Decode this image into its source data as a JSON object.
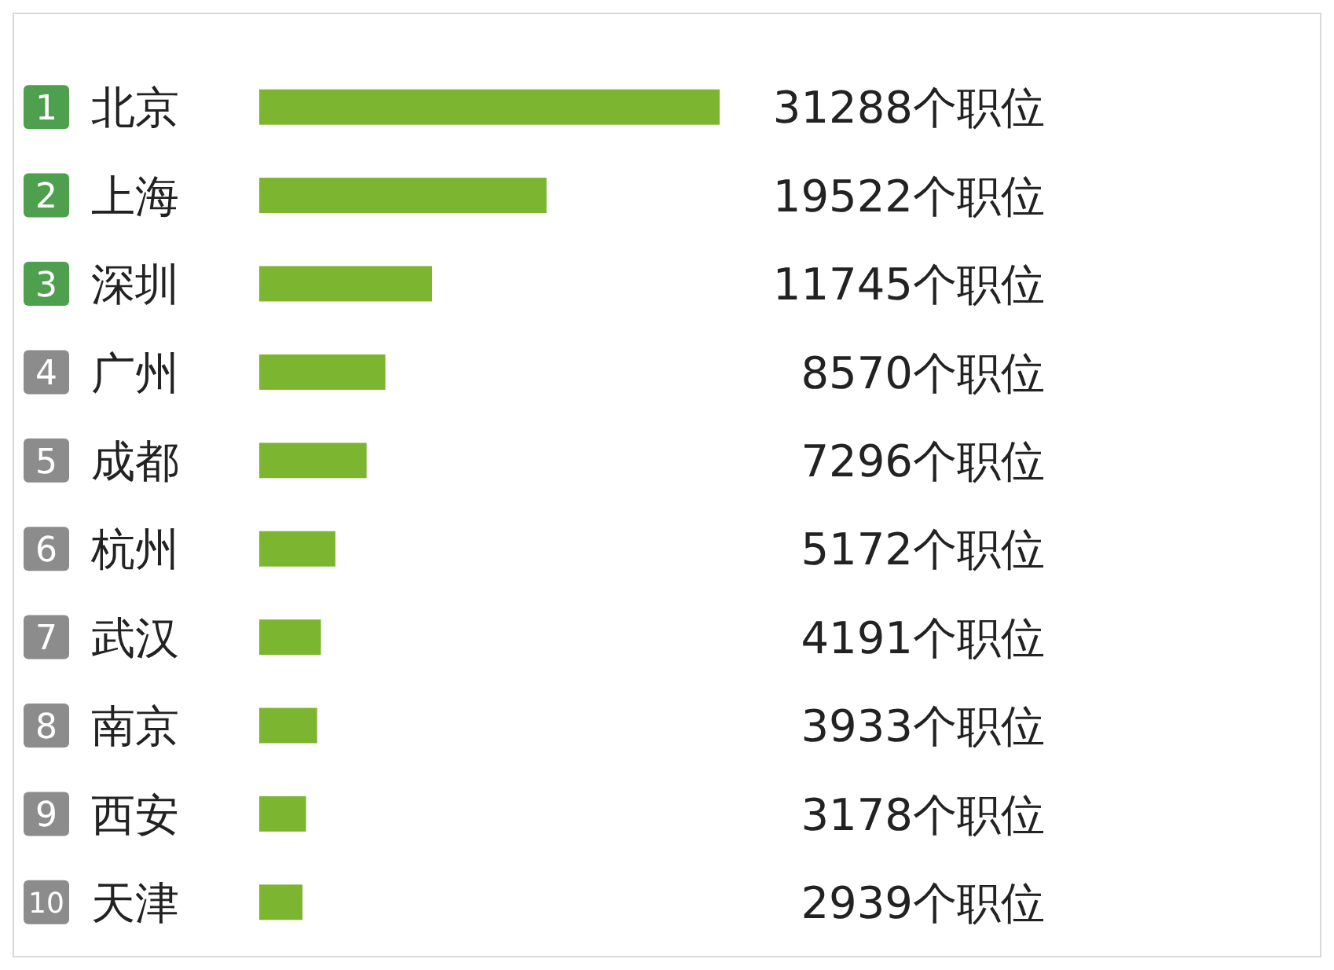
{
  "chart_data": {
    "type": "bar",
    "orientation": "horizontal",
    "categories": [
      "北京",
      "上海",
      "深圳",
      "广州",
      "成都",
      "杭州",
      "武汉",
      "南京",
      "西安",
      "天津"
    ],
    "values": [
      31288,
      19522,
      11745,
      8570,
      7296,
      5172,
      4191,
      3933,
      3178,
      2939
    ],
    "value_labels": [
      "31288个职位",
      "19522个职位",
      "11745个职位",
      "8570个职位",
      "7296个职位",
      "5172个职位",
      "4191个职位",
      "3933个职位",
      "3178个职位",
      "2939个职位"
    ],
    "color": "#7cb530",
    "annotations": [
      "1",
      "2",
      "3",
      "4",
      "5",
      "6",
      "7",
      "8",
      "9",
      "10"
    ]
  }
}
